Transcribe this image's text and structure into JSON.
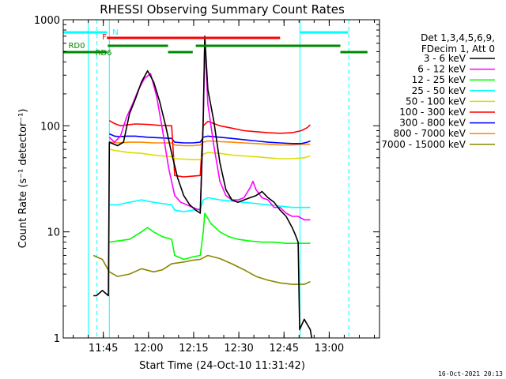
{
  "chart_data": {
    "type": "line",
    "title": "RHESSI Observing Summary Count Rates",
    "xlabel": "Start Time (24-Oct-10 11:31:42)",
    "ylabel": "Count Rate (s⁻¹ detector⁻¹)",
    "yscale": "log",
    "ylim": [
      1,
      1000
    ],
    "xlim_minutes": [
      0,
      105
    ],
    "x_ticks": [
      {
        "t": 13.3,
        "label": "11:45"
      },
      {
        "t": 28.3,
        "label": "12:00"
      },
      {
        "t": 43.3,
        "label": "12:15"
      },
      {
        "t": 58.3,
        "label": "12:30"
      },
      {
        "t": 73.3,
        "label": "12:45"
      },
      {
        "t": 88.3,
        "label": "13:00"
      }
    ],
    "y_ticks": [
      {
        "v": 1,
        "label": "1"
      },
      {
        "v": 10,
        "label": "10"
      },
      {
        "v": 100,
        "label": "100"
      },
      {
        "v": 1000,
        "label": "1000"
      }
    ],
    "legend_header": [
      "Det 1,3,4,5,6,9,",
      "FDecim 1, Att 0"
    ],
    "legend_position": "right",
    "timestamp": "16-Oct-2021 20:13",
    "series": [
      {
        "name": "3 - 6 keV",
        "color": "#000000",
        "points": [
          [
            10,
            2.5
          ],
          [
            11,
            2.5
          ],
          [
            13,
            2.8
          ],
          [
            15,
            2.5
          ],
          [
            15.3,
            70
          ],
          [
            18,
            65
          ],
          [
            20,
            70
          ],
          [
            22,
            130
          ],
          [
            24,
            180
          ],
          [
            26,
            260
          ],
          [
            28,
            330
          ],
          [
            30,
            260
          ],
          [
            32,
            170
          ],
          [
            34,
            100
          ],
          [
            36,
            55
          ],
          [
            38,
            32
          ],
          [
            40,
            22
          ],
          [
            42,
            18
          ],
          [
            44,
            16
          ],
          [
            45.5,
            15
          ],
          [
            46.5,
            120
          ],
          [
            47,
            700
          ],
          [
            48,
            220
          ],
          [
            50,
            110
          ],
          [
            52,
            45
          ],
          [
            54,
            25
          ],
          [
            56,
            20
          ],
          [
            58,
            19
          ],
          [
            60,
            20
          ],
          [
            62,
            21
          ],
          [
            64,
            22
          ],
          [
            66,
            24
          ],
          [
            68,
            21
          ],
          [
            70,
            19
          ],
          [
            72,
            16
          ],
          [
            74,
            14
          ],
          [
            76,
            11
          ],
          [
            77,
            9.5
          ],
          [
            78,
            8
          ],
          [
            78.5,
            1.2
          ],
          [
            80,
            1.5
          ],
          [
            82,
            1.2
          ],
          [
            82.5,
            1
          ]
        ]
      },
      {
        "name": "6 - 12 keV",
        "color": "#ff00ff",
        "points": [
          [
            15.3,
            78
          ],
          [
            17,
            70
          ],
          [
            19,
            80
          ],
          [
            21,
            120
          ],
          [
            23,
            160
          ],
          [
            25,
            220
          ],
          [
            27,
            280
          ],
          [
            29,
            310
          ],
          [
            31,
            190
          ],
          [
            33,
            90
          ],
          [
            35,
            40
          ],
          [
            37,
            22
          ],
          [
            39,
            19
          ],
          [
            41,
            18
          ],
          [
            43,
            17
          ],
          [
            45.5,
            16
          ],
          [
            46.5,
            110
          ],
          [
            47,
            620
          ],
          [
            48,
            160
          ],
          [
            50,
            65
          ],
          [
            52,
            30
          ],
          [
            54,
            22
          ],
          [
            56,
            20
          ],
          [
            58,
            20
          ],
          [
            60,
            21
          ],
          [
            62,
            26
          ],
          [
            63,
            30
          ],
          [
            64,
            25
          ],
          [
            66,
            21
          ],
          [
            68,
            20
          ],
          [
            70,
            17
          ],
          [
            72,
            17
          ],
          [
            74,
            15
          ],
          [
            76,
            14
          ],
          [
            78,
            14
          ],
          [
            80,
            13
          ],
          [
            82,
            13
          ]
        ]
      },
      {
        "name": "12 - 25 keV",
        "color": "#00ff00",
        "points": [
          [
            15.3,
            8
          ],
          [
            18,
            8.2
          ],
          [
            22,
            8.5
          ],
          [
            26,
            10
          ],
          [
            28,
            11
          ],
          [
            30,
            10
          ],
          [
            33,
            9
          ],
          [
            36,
            8.5
          ],
          [
            37,
            6
          ],
          [
            40,
            5.5
          ],
          [
            43,
            5.8
          ],
          [
            45.5,
            6
          ],
          [
            46.5,
            10
          ],
          [
            47,
            15
          ],
          [
            49,
            12
          ],
          [
            52,
            10
          ],
          [
            55,
            9
          ],
          [
            58,
            8.5
          ],
          [
            62,
            8.2
          ],
          [
            66,
            8
          ],
          [
            70,
            8
          ],
          [
            74,
            7.8
          ],
          [
            78,
            7.8
          ],
          [
            82,
            7.8
          ]
        ]
      },
      {
        "name": "25 - 50 keV",
        "color": "#00ffff",
        "points": [
          [
            15.3,
            18
          ],
          [
            18,
            18
          ],
          [
            22,
            19
          ],
          [
            26,
            20
          ],
          [
            30,
            19
          ],
          [
            33,
            18.5
          ],
          [
            36,
            18
          ],
          [
            37,
            16
          ],
          [
            40,
            15.5
          ],
          [
            43,
            16
          ],
          [
            45.5,
            16.5
          ],
          [
            46.5,
            20
          ],
          [
            48,
            21
          ],
          [
            52,
            20
          ],
          [
            56,
            19.5
          ],
          [
            60,
            19
          ],
          [
            64,
            18.5
          ],
          [
            68,
            18
          ],
          [
            72,
            17.5
          ],
          [
            76,
            17
          ],
          [
            80,
            17
          ],
          [
            82,
            17
          ]
        ]
      },
      {
        "name": "50 - 100 keV",
        "color": "#dddd00",
        "points": [
          [
            15.3,
            60
          ],
          [
            18,
            58
          ],
          [
            22,
            56
          ],
          [
            26,
            55
          ],
          [
            30,
            53
          ],
          [
            33,
            52
          ],
          [
            36,
            51
          ],
          [
            37,
            49
          ],
          [
            40,
            48.5
          ],
          [
            43,
            48
          ],
          [
            45.5,
            48
          ],
          [
            46.5,
            54
          ],
          [
            48,
            56
          ],
          [
            52,
            55
          ],
          [
            56,
            53
          ],
          [
            60,
            52
          ],
          [
            64,
            51
          ],
          [
            68,
            50
          ],
          [
            72,
            49
          ],
          [
            76,
            49
          ],
          [
            80,
            50
          ],
          [
            82,
            52
          ]
        ]
      },
      {
        "name": "100 - 300 keV",
        "color": "#ff0000",
        "points": [
          [
            15.3,
            112
          ],
          [
            17,
            105
          ],
          [
            19,
            100
          ],
          [
            21,
            102
          ],
          [
            24,
            104
          ],
          [
            28,
            103
          ],
          [
            32,
            101
          ],
          [
            36,
            100
          ],
          [
            37,
            34
          ],
          [
            40,
            33
          ],
          [
            43,
            33.5
          ],
          [
            45.5,
            34
          ],
          [
            46.5,
            100
          ],
          [
            48,
            110
          ],
          [
            52,
            100
          ],
          [
            56,
            95
          ],
          [
            60,
            90
          ],
          [
            64,
            88
          ],
          [
            68,
            86
          ],
          [
            72,
            85
          ],
          [
            76,
            86
          ],
          [
            79,
            90
          ],
          [
            81,
            96
          ],
          [
            82,
            102
          ]
        ]
      },
      {
        "name": "300 - 800 keV",
        "color": "#0000ff",
        "points": [
          [
            15.3,
            84
          ],
          [
            17,
            80
          ],
          [
            19,
            79
          ],
          [
            21,
            80
          ],
          [
            24,
            80
          ],
          [
            28,
            78
          ],
          [
            32,
            77
          ],
          [
            36,
            76
          ],
          [
            37,
            70
          ],
          [
            40,
            69
          ],
          [
            43,
            69
          ],
          [
            45.5,
            70
          ],
          [
            46.5,
            78
          ],
          [
            48,
            80
          ],
          [
            52,
            78
          ],
          [
            56,
            76
          ],
          [
            60,
            74
          ],
          [
            64,
            72
          ],
          [
            68,
            70
          ],
          [
            72,
            69
          ],
          [
            76,
            68
          ],
          [
            79,
            68
          ],
          [
            81,
            70
          ],
          [
            82,
            72
          ]
        ]
      },
      {
        "name": "800 - 7000 keV",
        "color": "#ff8800",
        "points": [
          [
            15.3,
            70
          ],
          [
            18,
            69
          ],
          [
            22,
            70
          ],
          [
            26,
            70
          ],
          [
            30,
            69
          ],
          [
            33,
            69
          ],
          [
            36,
            69
          ],
          [
            37,
            66
          ],
          [
            40,
            65
          ],
          [
            43,
            65
          ],
          [
            45.5,
            66
          ],
          [
            46.5,
            70
          ],
          [
            48,
            72
          ],
          [
            52,
            71
          ],
          [
            56,
            70
          ],
          [
            60,
            69
          ],
          [
            64,
            68
          ],
          [
            68,
            67
          ],
          [
            72,
            66
          ],
          [
            76,
            66
          ],
          [
            80,
            67
          ],
          [
            82,
            67
          ]
        ]
      },
      {
        "name": "7000 - 15000 keV",
        "color": "#888800",
        "points": [
          [
            10,
            6
          ],
          [
            13,
            5.5
          ],
          [
            15.3,
            4.2
          ],
          [
            18,
            3.8
          ],
          [
            22,
            4
          ],
          [
            26,
            4.5
          ],
          [
            30,
            4.2
          ],
          [
            33,
            4.4
          ],
          [
            36,
            5
          ],
          [
            40,
            5.2
          ],
          [
            43,
            5.4
          ],
          [
            45.5,
            5.5
          ],
          [
            48,
            6
          ],
          [
            52,
            5.6
          ],
          [
            56,
            5
          ],
          [
            60,
            4.4
          ],
          [
            64,
            3.8
          ],
          [
            68,
            3.5
          ],
          [
            72,
            3.3
          ],
          [
            76,
            3.2
          ],
          [
            80,
            3.2
          ],
          [
            82,
            3.4
          ]
        ]
      }
    ],
    "boundary_lines": {
      "color": "#00ffff",
      "solid_t": [
        8.3,
        15.3,
        78.6
      ],
      "dashed_t": [
        11.2,
        94.8
      ]
    },
    "status_bars": [
      {
        "label": "N",
        "color": "#00ffff",
        "row": "top",
        "segments": [
          [
            0,
            14.5
          ],
          [
            78.6,
            94.6
          ]
        ]
      },
      {
        "label": "F",
        "color": "#ff0000",
        "row": "flare",
        "segments": [
          [
            14.5,
            72
          ]
        ]
      },
      {
        "label": "RD0",
        "color": "#008800",
        "row": "rd_upper",
        "segments": [
          [
            14.8,
            34.8
          ],
          [
            44,
            92
          ]
        ]
      },
      {
        "label": "RD6",
        "color": "#008800",
        "row": "rd_lower",
        "segments": [
          [
            0,
            14.5
          ],
          [
            34.8,
            43
          ],
          [
            92,
            101
          ]
        ]
      }
    ]
  }
}
